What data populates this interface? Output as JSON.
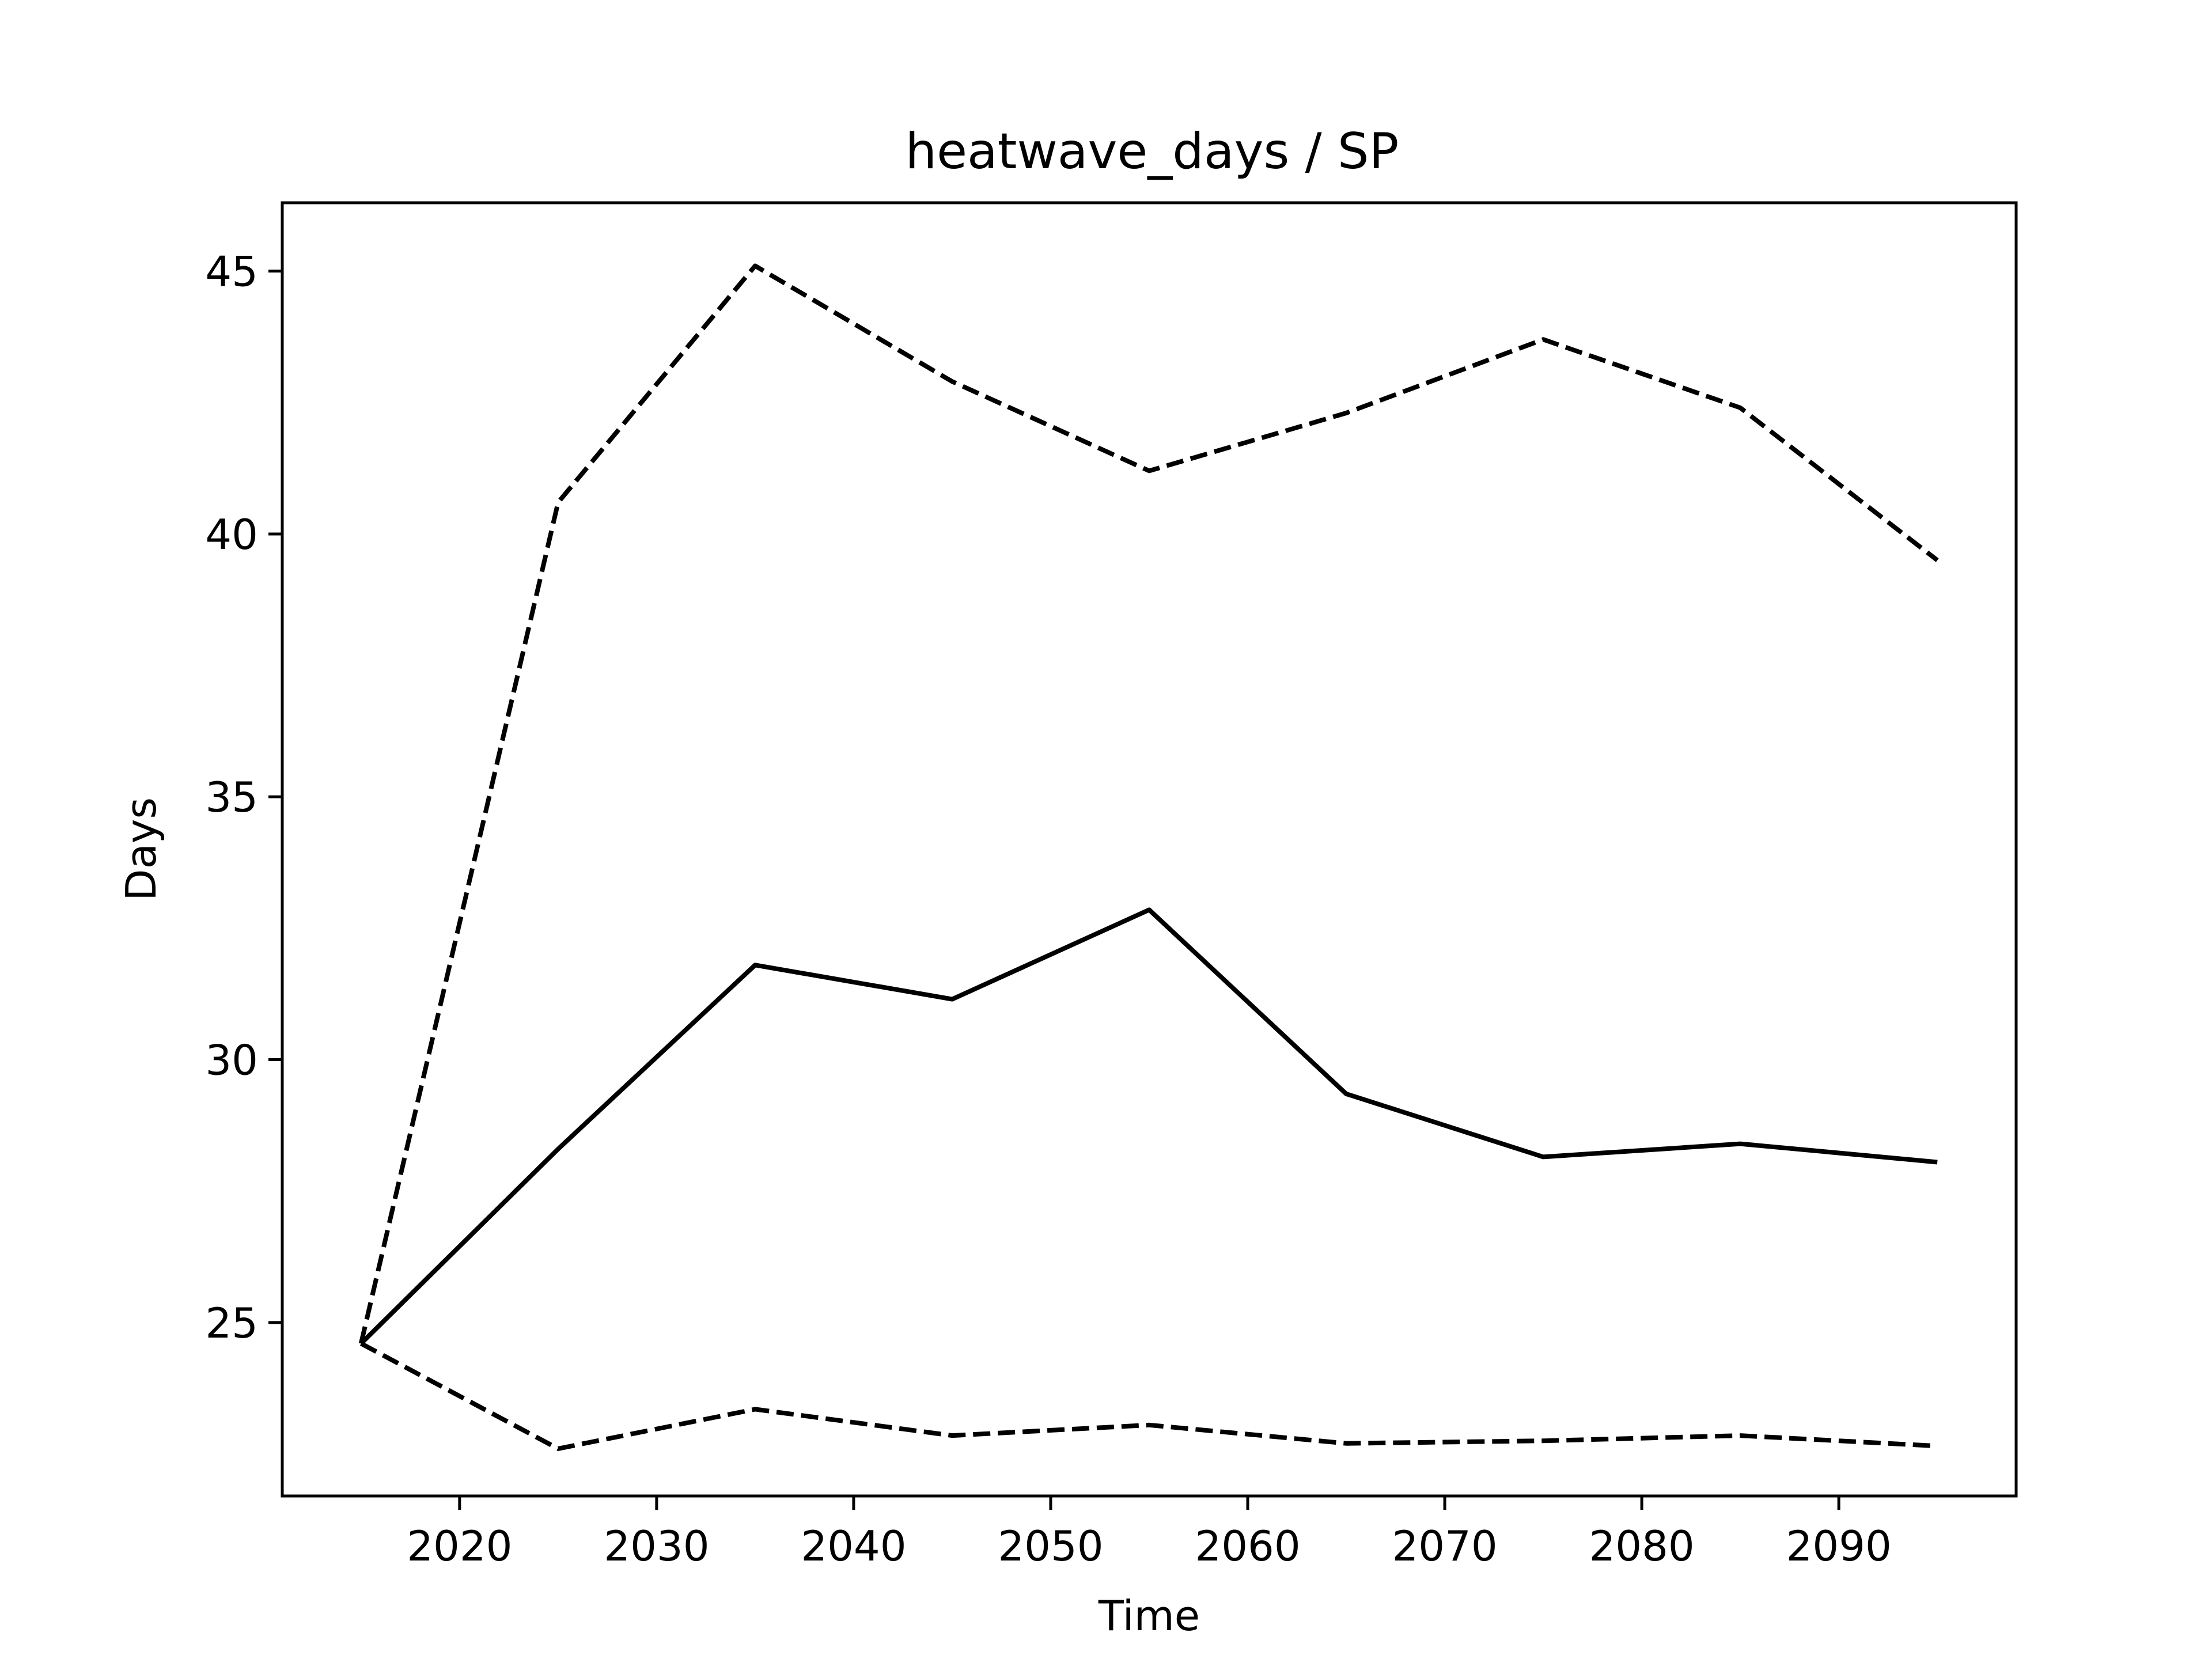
{
  "chart_data": {
    "type": "line",
    "title": "heatwave_days / SP",
    "xlabel": "Time",
    "ylabel": "Days",
    "xlim": [
      2011,
      2099
    ],
    "ylim": [
      21.7,
      46.3
    ],
    "xticks": [
      2020,
      2030,
      2040,
      2050,
      2060,
      2070,
      2080,
      2090
    ],
    "yticks": [
      25,
      30,
      35,
      40,
      45
    ],
    "grid": false,
    "legend": false,
    "x": [
      2015,
      2025,
      2035,
      2045,
      2055,
      2065,
      2075,
      2085,
      2095
    ],
    "series": [
      {
        "style": "solid",
        "color": "#000000",
        "values": [
          24.6,
          28.3,
          31.8,
          31.15,
          32.85,
          29.35,
          28.15,
          28.4,
          28.05
        ]
      },
      {
        "style": "dashed",
        "color": "#000000",
        "values": [
          24.6,
          40.6,
          45.1,
          42.9,
          41.2,
          42.3,
          43.7,
          42.4,
          39.5
        ]
      },
      {
        "style": "dashed",
        "color": "#000000",
        "values": [
          24.6,
          22.6,
          23.35,
          22.85,
          23.05,
          22.7,
          22.75,
          22.85,
          22.65
        ]
      }
    ]
  }
}
